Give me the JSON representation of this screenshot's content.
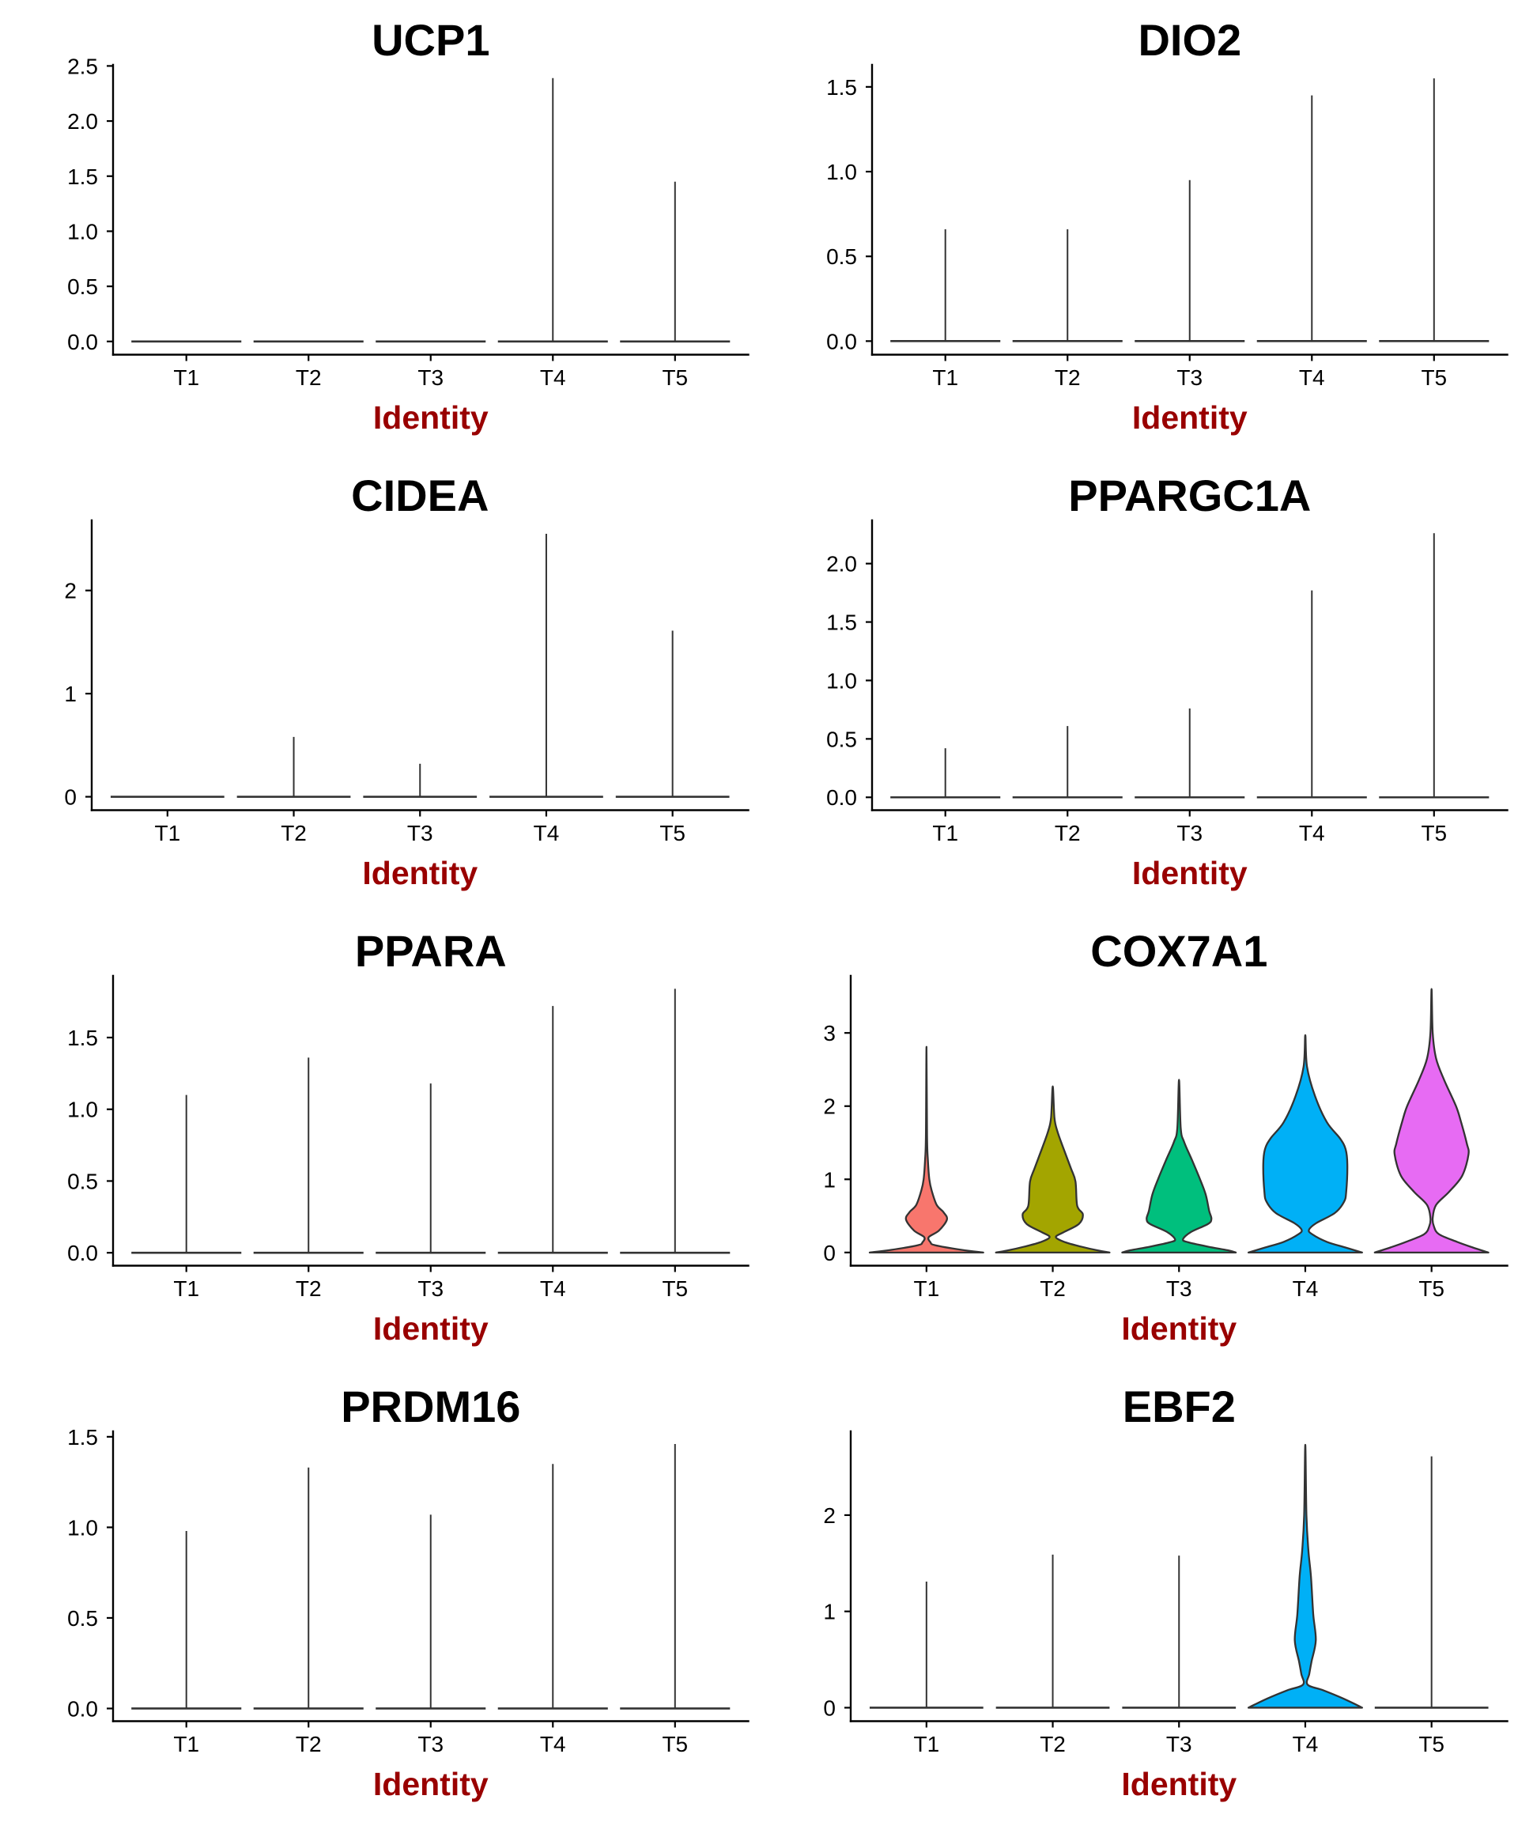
{
  "palette": {
    "T1": "#F8766D",
    "T2": "#A3A500",
    "T3": "#00BF7D",
    "T4": "#00B0F6",
    "T5": "#E76BF3"
  },
  "axis_title_color": "#990000",
  "chart_data": [
    {
      "type": "violin",
      "title": "UCP1",
      "xlabel": "Identity",
      "ylabel": "",
      "categories": [
        "T1",
        "T2",
        "T3",
        "T4",
        "T5"
      ],
      "yticks": [
        0,
        0.5,
        1,
        1.5,
        2,
        2.5
      ],
      "ytick_labels": [
        "0.0",
        "0.5",
        "1.0",
        "1.5",
        "2.0",
        "2.5"
      ],
      "ylim": [
        -0.12,
        2.51
      ],
      "grid": false,
      "legend": "none",
      "violins": [
        {
          "category": "T1",
          "max": 0
        },
        {
          "category": "T2",
          "max": 0
        },
        {
          "category": "T3",
          "max": 0
        },
        {
          "category": "T4",
          "max": 2.39
        },
        {
          "category": "T5",
          "max": 1.45
        }
      ]
    },
    {
      "type": "violin",
      "title": "DIO2",
      "xlabel": "Identity",
      "ylabel": "",
      "categories": [
        "T1",
        "T2",
        "T3",
        "T4",
        "T5"
      ],
      "yticks": [
        0,
        0.5,
        1,
        1.5
      ],
      "ytick_labels": [
        "0.0",
        "0.5",
        "1.0",
        "1.5"
      ],
      "ylim": [
        -0.08,
        1.63
      ],
      "grid": false,
      "legend": "none",
      "violins": [
        {
          "category": "T1",
          "max": 0.66
        },
        {
          "category": "T2",
          "max": 0.66
        },
        {
          "category": "T3",
          "max": 0.95
        },
        {
          "category": "T4",
          "max": 1.45
        },
        {
          "category": "T5",
          "max": 1.55
        }
      ]
    },
    {
      "type": "violin",
      "title": "CIDEA",
      "xlabel": "Identity",
      "ylabel": "",
      "categories": [
        "T1",
        "T2",
        "T3",
        "T4",
        "T5"
      ],
      "yticks": [
        0,
        1,
        2
      ],
      "ytick_labels": [
        "0",
        "1",
        "2"
      ],
      "ylim": [
        -0.13,
        2.68
      ],
      "grid": false,
      "legend": "none",
      "violins": [
        {
          "category": "T1",
          "max": 0
        },
        {
          "category": "T2",
          "max": 0.58
        },
        {
          "category": "T3",
          "max": 0.32
        },
        {
          "category": "T4",
          "max": 2.55
        },
        {
          "category": "T5",
          "max": 1.61
        }
      ]
    },
    {
      "type": "violin",
      "title": "PPARGC1A",
      "xlabel": "Identity",
      "ylabel": "",
      "categories": [
        "T1",
        "T2",
        "T3",
        "T4",
        "T5"
      ],
      "yticks": [
        0,
        0.5,
        1,
        1.5,
        2
      ],
      "ytick_labels": [
        "0.0",
        "0.5",
        "1.0",
        "1.5",
        "2.0"
      ],
      "ylim": [
        -0.11,
        2.37
      ],
      "grid": false,
      "legend": "none",
      "violins": [
        {
          "category": "T1",
          "max": 0.42
        },
        {
          "category": "T2",
          "max": 0.61
        },
        {
          "category": "T3",
          "max": 0.76
        },
        {
          "category": "T4",
          "max": 1.77
        },
        {
          "category": "T5",
          "max": 2.26
        }
      ]
    },
    {
      "type": "violin",
      "title": "PPARA",
      "xlabel": "Identity",
      "ylabel": "",
      "categories": [
        "T1",
        "T2",
        "T3",
        "T4",
        "T5"
      ],
      "yticks": [
        0,
        0.5,
        1,
        1.5
      ],
      "ytick_labels": [
        "0.0",
        "0.5",
        "1.0",
        "1.5"
      ],
      "ylim": [
        -0.09,
        1.93
      ],
      "grid": false,
      "legend": "none",
      "violins": [
        {
          "category": "T1",
          "max": 1.1
        },
        {
          "category": "T2",
          "max": 1.36
        },
        {
          "category": "T3",
          "max": 1.18
        },
        {
          "category": "T4",
          "max": 1.72
        },
        {
          "category": "T5",
          "max": 1.84
        }
      ]
    },
    {
      "type": "violin",
      "title": "COX7A1",
      "xlabel": "Identity",
      "ylabel": "",
      "categories": [
        "T1",
        "T2",
        "T3",
        "T4",
        "T5"
      ],
      "yticks": [
        0,
        1,
        2,
        3
      ],
      "ytick_labels": [
        "0",
        "1",
        "2",
        "3"
      ],
      "ylim": [
        -0.18,
        3.78
      ],
      "grid": false,
      "legend": "none",
      "violins": [
        {
          "category": "T1",
          "max": 2.81,
          "density": [
            [
              0,
              1
            ],
            [
              0.036,
              0.62
            ],
            [
              0.1,
              0.15
            ],
            [
              0.14,
              0.07
            ],
            [
              0.21,
              0.04
            ],
            [
              0.3,
              0.22
            ],
            [
              0.45,
              0.36
            ],
            [
              0.55,
              0.3
            ],
            [
              0.65,
              0.18
            ],
            [
              0.85,
              0.09
            ],
            [
              1.0,
              0.05
            ],
            [
              1.26,
              0.025
            ],
            [
              1.6,
              0.01
            ],
            [
              2.81,
              0
            ]
          ]
        },
        {
          "category": "T2",
          "max": 2.27,
          "density": [
            [
              0,
              1
            ],
            [
              0.03,
              0.78
            ],
            [
              0.08,
              0.5
            ],
            [
              0.14,
              0.22
            ],
            [
              0.21,
              0.055
            ],
            [
              0.28,
              0.2
            ],
            [
              0.39,
              0.46
            ],
            [
              0.52,
              0.53
            ],
            [
              0.64,
              0.43
            ],
            [
              0.97,
              0.4
            ],
            [
              1.15,
              0.32
            ],
            [
              1.44,
              0.18
            ],
            [
              1.66,
              0.08
            ],
            [
              1.84,
              0.03
            ],
            [
              2.27,
              0
            ]
          ]
        },
        {
          "category": "T3",
          "max": 2.36,
          "density": [
            [
              0,
              1
            ],
            [
              0.03,
              0.86
            ],
            [
              0.08,
              0.51
            ],
            [
              0.14,
              0.16
            ],
            [
              0.18,
              0.07
            ],
            [
              0.28,
              0.21
            ],
            [
              0.39,
              0.51
            ],
            [
              0.46,
              0.57
            ],
            [
              0.57,
              0.53
            ],
            [
              0.79,
              0.47
            ],
            [
              1.0,
              0.37
            ],
            [
              1.26,
              0.23
            ],
            [
              1.51,
              0.09
            ],
            [
              1.7,
              0.03
            ],
            [
              2.36,
              0
            ]
          ]
        },
        {
          "category": "T4",
          "max": 2.97,
          "density": [
            [
              0,
              1
            ],
            [
              0.07,
              0.7
            ],
            [
              0.145,
              0.38
            ],
            [
              0.25,
              0.12
            ],
            [
              0.31,
              0.065
            ],
            [
              0.4,
              0.19
            ],
            [
              0.54,
              0.52
            ],
            [
              0.69,
              0.68
            ],
            [
              0.83,
              0.72
            ],
            [
              1.2,
              0.74
            ],
            [
              1.41,
              0.71
            ],
            [
              1.56,
              0.61
            ],
            [
              1.78,
              0.38
            ],
            [
              2.14,
              0.17
            ],
            [
              2.54,
              0.03
            ],
            [
              2.97,
              0
            ]
          ]
        },
        {
          "category": "T5",
          "max": 3.6,
          "density": [
            [
              0,
              1
            ],
            [
              0.07,
              0.72
            ],
            [
              0.145,
              0.45
            ],
            [
              0.25,
              0.13
            ],
            [
              0.36,
              0.04
            ],
            [
              0.47,
              0.02
            ],
            [
              0.65,
              0.08
            ],
            [
              0.83,
              0.31
            ],
            [
              1.05,
              0.54
            ],
            [
              1.34,
              0.65
            ],
            [
              1.49,
              0.62
            ],
            [
              1.78,
              0.52
            ],
            [
              2.0,
              0.43
            ],
            [
              2.36,
              0.22
            ],
            [
              2.65,
              0.08
            ],
            [
              3.0,
              0.02
            ],
            [
              3.6,
              0
            ]
          ]
        }
      ]
    },
    {
      "type": "violin",
      "title": "PRDM16",
      "xlabel": "Identity",
      "ylabel": "",
      "categories": [
        "T1",
        "T2",
        "T3",
        "T4",
        "T5"
      ],
      "yticks": [
        0,
        0.5,
        1,
        1.5
      ],
      "ytick_labels": [
        "0.0",
        "0.5",
        "1.0",
        "1.5"
      ],
      "ylim": [
        -0.07,
        1.53
      ],
      "grid": false,
      "legend": "none",
      "violins": [
        {
          "category": "T1",
          "max": 0.98
        },
        {
          "category": "T2",
          "max": 1.33
        },
        {
          "category": "T3",
          "max": 1.07
        },
        {
          "category": "T4",
          "max": 1.35
        },
        {
          "category": "T5",
          "max": 1.46
        }
      ]
    },
    {
      "type": "violin",
      "title": "EBF2",
      "xlabel": "Identity",
      "ylabel": "",
      "categories": [
        "T1",
        "T2",
        "T3",
        "T4",
        "T5"
      ],
      "yticks": [
        0,
        1,
        2
      ],
      "ytick_labels": [
        "0",
        "1",
        "2"
      ],
      "ylim": [
        -0.14,
        2.87
      ],
      "grid": false,
      "legend": "none",
      "violins": [
        {
          "category": "T1",
          "max": 1.31
        },
        {
          "category": "T2",
          "max": 1.59
        },
        {
          "category": "T3",
          "max": 1.58
        },
        {
          "category": "T4",
          "max": 2.73,
          "density": [
            [
              0,
              1
            ],
            [
              0.03,
              0.9
            ],
            [
              0.1,
              0.65
            ],
            [
              0.18,
              0.32
            ],
            [
              0.24,
              0.04
            ],
            [
              0.35,
              0.07
            ],
            [
              0.48,
              0.11
            ],
            [
              0.7,
              0.185
            ],
            [
              0.97,
              0.14
            ],
            [
              1.36,
              0.1
            ],
            [
              1.63,
              0.055
            ],
            [
              2.0,
              0.02
            ],
            [
              2.73,
              0
            ]
          ]
        },
        {
          "category": "T5",
          "max": 2.61
        }
      ]
    }
  ]
}
